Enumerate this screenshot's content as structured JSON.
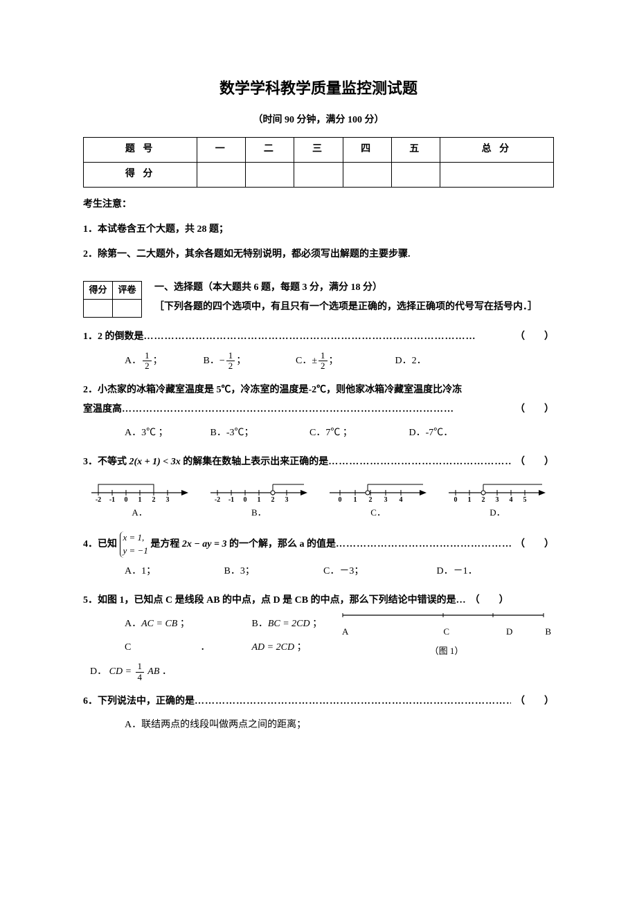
{
  "title": "数学学科教学质量监控测试题",
  "subtitle": "（时间 90 分钟，满分 100 分）",
  "score_table": {
    "headers": [
      "题 号",
      "一",
      "二",
      "三",
      "四",
      "五",
      "总 分"
    ],
    "row_label": "得 分"
  },
  "notice_head": "考生注意：",
  "notices": [
    "1．本试卷含五个大题，共 28 题；",
    "2．除第一、二大题外，其余各题如无特别说明，都必须写出解题的主要步骤."
  ],
  "mini_headers": [
    "得分",
    "评卷"
  ],
  "section1": {
    "title": "一、选择题（本大题共 6 题，每题 3 分，满分 18 分）",
    "instr": "［下列各题的四个选项中，有且只有一个选项是正确的，选择正确项的代号写在括号内．］"
  },
  "q1": {
    "stem": "1．2 的倒数是",
    "A": "A．",
    "A_num": "1",
    "A_den": "2",
    "A_tail": " ；",
    "B": "B．",
    "B_sign": "−",
    "B_num": "1",
    "B_den": "2",
    "B_tail": " ；",
    "C": "C．",
    "C_sign": "±",
    "C_num": "1",
    "C_den": "2",
    "C_tail": " ；",
    "D": "D．2．"
  },
  "q2": {
    "stem_a": "2．小杰家的冰箱冷藏室温度是 5℃，冷冻室的温度是-2℃，则他家冰箱冷藏室温度比冷冻",
    "stem_b": "室温度高",
    "A": "A．3℃ ；",
    "B": "B．-3℃；",
    "C": "C．7℃ ；",
    "D": "D．-7℃．"
  },
  "q3": {
    "stem_pre": "3．不等式 ",
    "expr": "2(x + 1) < 3x",
    "stem_post": " 的解集在数轴上表示出来正确的是",
    "labels": [
      "A．",
      "B．",
      "C．",
      "D．"
    ],
    "ticks": {
      "A": [
        "-2",
        "-1",
        "0",
        "1",
        "2",
        "3"
      ],
      "B": [
        "-2",
        "-1",
        "0",
        "1",
        "2",
        "3"
      ],
      "C": [
        "0",
        "1",
        "2",
        "3",
        "4"
      ],
      "D": [
        "0",
        "1",
        "2",
        "3",
        "4",
        "5"
      ]
    },
    "style": {
      "line_color": "#000000",
      "shade_color": "#000000",
      "font_size": 10
    }
  },
  "q4": {
    "stem_pre": "4．已知 ",
    "sys_top": "x = 1,",
    "sys_bot": "y = −1",
    "stem_mid": " 是方程 ",
    "expr": "2x − ay = 3",
    "stem_post": " 的一个解，那么 a 的值是",
    "A": "A．1；",
    "B": "B．3；",
    "C": "C．－3；",
    "D": "D．－1．"
  },
  "q5": {
    "stem": "5．如图 1，已知点 C 是线段 AB 的中点，点 D 是 CB 的中点，那么下列结论中错误的是…",
    "A_pre": "A．",
    "A_expr": "AC = CB",
    "A_tail": " ；",
    "B_pre": "B．",
    "B_expr": "BC = 2CD",
    "B_tail": " ；",
    "C_pre": "C",
    "C_dot": "．",
    "C_expr": "AD = 2CD",
    "C_tail": " ；",
    "D_pre": "D．",
    "D_expr_pre": "CD = ",
    "D_num": "1",
    "D_den": "4",
    "D_expr_post": " AB",
    "D_tail": " ．",
    "seg_labels": [
      "A",
      "C",
      "D",
      "B"
    ],
    "caption": "（图 1）"
  },
  "q6": {
    "stem": "6．下列说法中，正确的是",
    "A": "A．联结两点的线段叫做两点之间的距离；"
  },
  "paren": "（　　）",
  "dots": "……………………………………………………………………………………"
}
